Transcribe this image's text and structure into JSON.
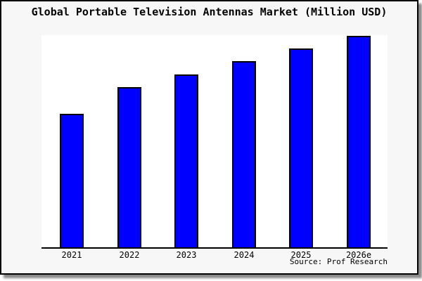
{
  "window": {
    "background_color": "#f7f7f7",
    "frame_border_color": "#000000",
    "shadow_color": "#8a8a8a"
  },
  "chart_data": {
    "type": "bar",
    "title": "Global Portable Television Antennas Market (Million USD)",
    "categories": [
      "2021",
      "2022",
      "2023",
      "2024",
      "2025",
      "2026e"
    ],
    "values": [
      190,
      228,
      246,
      265,
      283,
      301
    ],
    "xlabel": "",
    "ylabel": "",
    "ylim": [
      0,
      302
    ],
    "y_axis_visible": false,
    "grid": false,
    "legend": false,
    "bar_color": "#0000ff",
    "bar_border_color": "#000000",
    "axis_color": "#000000",
    "plot_background": "#ffffff"
  },
  "source": {
    "label": "Source: Prof Research"
  }
}
